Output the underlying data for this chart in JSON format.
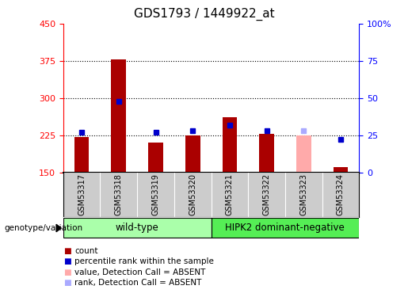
{
  "title": "GDS1793 / 1449922_at",
  "samples": [
    "GSM53317",
    "GSM53318",
    "GSM53319",
    "GSM53320",
    "GSM53321",
    "GSM53322",
    "GSM53323",
    "GSM53324"
  ],
  "count_values": [
    222,
    378,
    210,
    225,
    262,
    228,
    null,
    160
  ],
  "count_absent": [
    null,
    null,
    null,
    null,
    null,
    null,
    225,
    null
  ],
  "rank_values": [
    27,
    48,
    27,
    28,
    32,
    28,
    null,
    22
  ],
  "rank_absent": [
    null,
    null,
    null,
    null,
    null,
    null,
    28,
    null
  ],
  "ylim_left": [
    150,
    450
  ],
  "ylim_right": [
    0,
    100
  ],
  "yticks_left": [
    150,
    225,
    300,
    375,
    450
  ],
  "yticks_right": [
    0,
    25,
    50,
    75,
    100
  ],
  "bar_width": 0.4,
  "bar_color_present": "#aa0000",
  "bar_color_absent": "#ffaaaa",
  "rank_color_present": "#0000cc",
  "rank_color_absent": "#aaaaff",
  "group1_label": "wild-type",
  "group2_label": "HIPK2 dominant-negative",
  "group1_indices": [
    0,
    1,
    2,
    3
  ],
  "group2_indices": [
    4,
    5,
    6,
    7
  ],
  "group1_color": "#aaffaa",
  "group2_color": "#55ee55",
  "legend_items": [
    {
      "label": "count",
      "color": "#aa0000"
    },
    {
      "label": "percentile rank within the sample",
      "color": "#0000cc"
    },
    {
      "label": "value, Detection Call = ABSENT",
      "color": "#ffaaaa"
    },
    {
      "label": "rank, Detection Call = ABSENT",
      "color": "#aaaaff"
    }
  ],
  "title_fontsize": 11,
  "tick_fontsize": 8,
  "background_color": "#ffffff",
  "plot_bg": "#ffffff",
  "genotype_label": "genotype/variation",
  "gridline_values": [
    225,
    300,
    375
  ]
}
